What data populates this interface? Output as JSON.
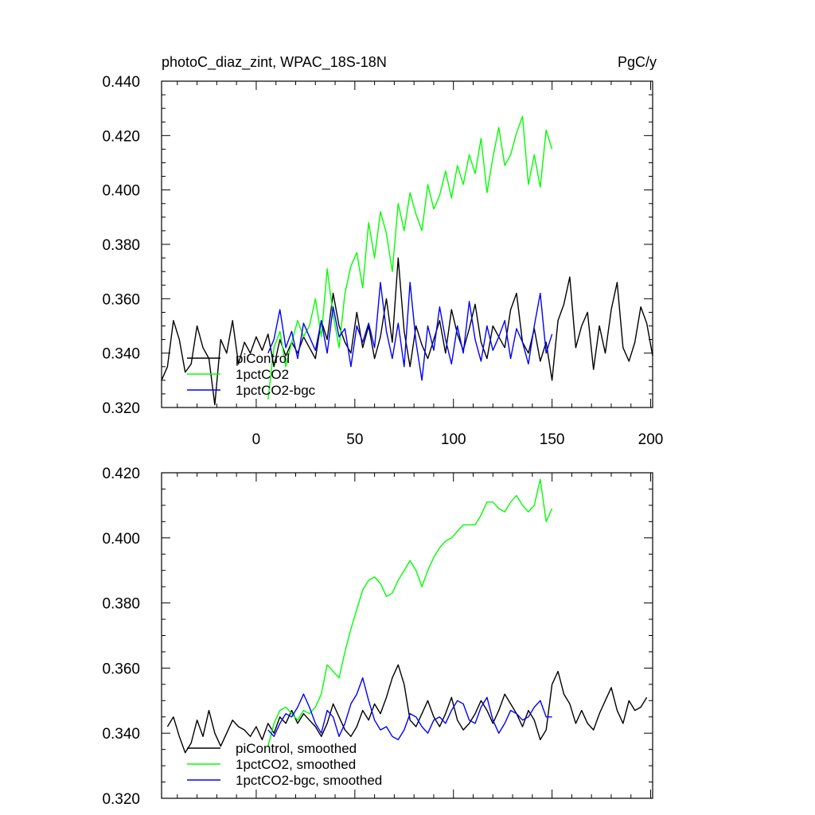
{
  "header": {
    "left": "photoC_diaz_zint, WPAC_18S-18N",
    "right": "PgC/y"
  },
  "chart_data": [
    {
      "type": "line",
      "title": "photoC_diaz_zint, WPAC_18S-18N",
      "units": "PgC/y",
      "xlim": [
        -48,
        201
      ],
      "ylim": [
        0.32,
        0.44
      ],
      "xticks": [
        0,
        50,
        100,
        150,
        200
      ],
      "xtick_labels": [
        "0",
        "50",
        "100",
        "150",
        "200"
      ],
      "yticks": [
        0.32,
        0.34,
        0.36,
        0.38,
        0.4,
        0.42,
        0.44
      ],
      "ytick_labels": [
        "0.320",
        "0.340",
        "0.360",
        "0.380",
        "0.400",
        "0.420",
        "0.440"
      ],
      "legend_position": "bottom-left",
      "series": [
        {
          "name": "piControl",
          "color": "#000000",
          "x": [
            -48,
            -45,
            -42,
            -39,
            -36,
            -33,
            -30,
            -27,
            -24,
            -21,
            -18,
            -15,
            -12,
            -9,
            -6,
            -3,
            0,
            3,
            6,
            9,
            12,
            15,
            18,
            21,
            24,
            27,
            30,
            33,
            36,
            39,
            42,
            45,
            48,
            51,
            54,
            57,
            60,
            63,
            66,
            69,
            72,
            75,
            78,
            81,
            84,
            87,
            90,
            93,
            96,
            99,
            102,
            105,
            108,
            111,
            114,
            117,
            120,
            123,
            126,
            129,
            132,
            135,
            138,
            141,
            144,
            147,
            150,
            153,
            156,
            159,
            162,
            165,
            168,
            171,
            174,
            177,
            180,
            183,
            186,
            189,
            192,
            195,
            198,
            201
          ],
          "y": [
            0.33,
            0.335,
            0.352,
            0.345,
            0.333,
            0.336,
            0.35,
            0.342,
            0.338,
            0.321,
            0.345,
            0.34,
            0.352,
            0.336,
            0.344,
            0.34,
            0.346,
            0.341,
            0.347,
            0.335,
            0.345,
            0.339,
            0.344,
            0.34,
            0.346,
            0.342,
            0.338,
            0.352,
            0.345,
            0.362,
            0.35,
            0.344,
            0.34,
            0.355,
            0.342,
            0.35,
            0.338,
            0.346,
            0.36,
            0.344,
            0.375,
            0.348,
            0.335,
            0.35,
            0.343,
            0.338,
            0.345,
            0.352,
            0.34,
            0.356,
            0.347,
            0.341,
            0.349,
            0.358,
            0.344,
            0.338,
            0.35,
            0.346,
            0.342,
            0.356,
            0.362,
            0.344,
            0.34,
            0.349,
            0.337,
            0.344,
            0.33,
            0.352,
            0.358,
            0.368,
            0.342,
            0.35,
            0.355,
            0.334,
            0.35,
            0.34,
            0.356,
            0.366,
            0.342,
            0.337,
            0.344,
            0.357,
            0.351,
            0.339
          ]
        },
        {
          "name": "1pctCO2",
          "color": "#00ff00",
          "x": [
            6,
            9,
            12,
            15,
            18,
            21,
            24,
            27,
            30,
            33,
            36,
            39,
            42,
            45,
            48,
            51,
            54,
            57,
            60,
            63,
            66,
            69,
            72,
            75,
            78,
            81,
            84,
            87,
            90,
            93,
            96,
            99,
            102,
            105,
            108,
            111,
            114,
            117,
            120,
            123,
            126,
            129,
            132,
            135,
            138,
            141,
            144,
            147,
            150
          ],
          "y": [
            0.323,
            0.342,
            0.348,
            0.335,
            0.344,
            0.352,
            0.346,
            0.35,
            0.36,
            0.346,
            0.371,
            0.354,
            0.342,
            0.362,
            0.372,
            0.377,
            0.364,
            0.388,
            0.375,
            0.392,
            0.384,
            0.37,
            0.395,
            0.385,
            0.399,
            0.391,
            0.385,
            0.402,
            0.393,
            0.398,
            0.407,
            0.397,
            0.409,
            0.402,
            0.413,
            0.406,
            0.419,
            0.399,
            0.412,
            0.423,
            0.409,
            0.413,
            0.421,
            0.427,
            0.402,
            0.413,
            0.401,
            0.422,
            0.415
          ]
        },
        {
          "name": "1pctCO2-bgc",
          "color": "#0000ff",
          "x": [
            6,
            9,
            12,
            15,
            18,
            21,
            24,
            27,
            30,
            33,
            36,
            39,
            42,
            45,
            48,
            51,
            54,
            57,
            60,
            63,
            66,
            69,
            72,
            75,
            78,
            81,
            84,
            87,
            90,
            93,
            96,
            99,
            102,
            105,
            108,
            111,
            114,
            117,
            120,
            123,
            126,
            129,
            132,
            135,
            138,
            141,
            144,
            147,
            150
          ],
          "y": [
            0.34,
            0.345,
            0.356,
            0.342,
            0.348,
            0.338,
            0.351,
            0.346,
            0.341,
            0.352,
            0.34,
            0.357,
            0.346,
            0.349,
            0.335,
            0.35,
            0.344,
            0.351,
            0.342,
            0.366,
            0.348,
            0.338,
            0.351,
            0.335,
            0.366,
            0.344,
            0.33,
            0.35,
            0.341,
            0.357,
            0.345,
            0.336,
            0.35,
            0.34,
            0.359,
            0.345,
            0.337,
            0.35,
            0.341,
            0.346,
            0.352,
            0.338,
            0.349,
            0.344,
            0.336,
            0.35,
            0.362,
            0.34,
            0.347
          ]
        }
      ]
    },
    {
      "type": "line",
      "xlim": [
        -48,
        201
      ],
      "ylim": [
        0.32,
        0.42
      ],
      "xticks": [
        0,
        50,
        100,
        150,
        200
      ],
      "yticks": [
        0.32,
        0.34,
        0.36,
        0.38,
        0.4,
        0.42
      ],
      "ytick_labels": [
        "0.320",
        "0.340",
        "0.360",
        "0.380",
        "0.400",
        "0.420"
      ],
      "legend_position": "bottom-left",
      "series": [
        {
          "name": "piControl, smoothed",
          "color": "#000000",
          "x": [
            -45,
            -42,
            -39,
            -36,
            -33,
            -30,
            -27,
            -24,
            -21,
            -18,
            -15,
            -12,
            -9,
            -6,
            -3,
            0,
            3,
            6,
            9,
            12,
            15,
            18,
            21,
            24,
            27,
            30,
            33,
            36,
            39,
            42,
            45,
            48,
            51,
            54,
            57,
            60,
            63,
            66,
            69,
            72,
            75,
            78,
            81,
            84,
            87,
            90,
            93,
            96,
            99,
            102,
            105,
            108,
            111,
            114,
            117,
            120,
            123,
            126,
            129,
            132,
            135,
            138,
            141,
            144,
            147,
            150,
            153,
            156,
            159,
            162,
            165,
            168,
            171,
            174,
            177,
            180,
            183,
            186,
            189,
            192,
            195,
            198
          ],
          "y": [
            0.342,
            0.345,
            0.339,
            0.334,
            0.337,
            0.344,
            0.339,
            0.347,
            0.34,
            0.336,
            0.34,
            0.344,
            0.342,
            0.341,
            0.339,
            0.342,
            0.338,
            0.343,
            0.34,
            0.345,
            0.343,
            0.347,
            0.343,
            0.346,
            0.344,
            0.342,
            0.339,
            0.343,
            0.349,
            0.345,
            0.341,
            0.339,
            0.342,
            0.347,
            0.344,
            0.349,
            0.346,
            0.351,
            0.357,
            0.361,
            0.355,
            0.344,
            0.342,
            0.346,
            0.35,
            0.345,
            0.342,
            0.346,
            0.351,
            0.344,
            0.341,
            0.343,
            0.346,
            0.35,
            0.347,
            0.343,
            0.347,
            0.352,
            0.349,
            0.346,
            0.342,
            0.347,
            0.344,
            0.338,
            0.341,
            0.355,
            0.359,
            0.352,
            0.349,
            0.343,
            0.347,
            0.343,
            0.341,
            0.346,
            0.35,
            0.354,
            0.347,
            0.343,
            0.35,
            0.347,
            0.348,
            0.351
          ]
        },
        {
          "name": "1pctCO2, smoothed",
          "color": "#00ff00",
          "x": [
            6,
            9,
            12,
            15,
            18,
            21,
            24,
            27,
            30,
            33,
            36,
            39,
            42,
            45,
            48,
            51,
            54,
            57,
            60,
            63,
            66,
            69,
            72,
            75,
            78,
            81,
            84,
            87,
            90,
            93,
            96,
            99,
            102,
            105,
            108,
            111,
            114,
            117,
            120,
            123,
            126,
            129,
            132,
            135,
            138,
            141,
            144,
            147,
            150
          ],
          "y": [
            0.336,
            0.343,
            0.347,
            0.348,
            0.346,
            0.344,
            0.347,
            0.346,
            0.348,
            0.352,
            0.361,
            0.359,
            0.357,
            0.365,
            0.372,
            0.378,
            0.384,
            0.387,
            0.388,
            0.386,
            0.382,
            0.383,
            0.387,
            0.39,
            0.393,
            0.39,
            0.385,
            0.39,
            0.394,
            0.397,
            0.399,
            0.4,
            0.402,
            0.404,
            0.404,
            0.404,
            0.407,
            0.411,
            0.411,
            0.409,
            0.408,
            0.411,
            0.413,
            0.41,
            0.408,
            0.41,
            0.418,
            0.405,
            0.409
          ]
        },
        {
          "name": "1pctCO2-bgc, smoothed",
          "color": "#0000ff",
          "x": [
            6,
            9,
            12,
            15,
            18,
            21,
            24,
            27,
            30,
            33,
            36,
            39,
            42,
            45,
            48,
            51,
            54,
            57,
            60,
            63,
            66,
            69,
            72,
            75,
            78,
            81,
            84,
            87,
            90,
            93,
            96,
            99,
            102,
            105,
            108,
            111,
            114,
            117,
            120,
            123,
            126,
            129,
            132,
            135,
            138,
            141,
            144,
            147,
            150
          ],
          "y": [
            0.341,
            0.339,
            0.343,
            0.346,
            0.345,
            0.348,
            0.352,
            0.348,
            0.343,
            0.34,
            0.347,
            0.345,
            0.339,
            0.343,
            0.349,
            0.352,
            0.357,
            0.35,
            0.344,
            0.341,
            0.342,
            0.339,
            0.338,
            0.341,
            0.346,
            0.345,
            0.342,
            0.34,
            0.344,
            0.345,
            0.343,
            0.347,
            0.35,
            0.349,
            0.344,
            0.343,
            0.348,
            0.351,
            0.344,
            0.34,
            0.343,
            0.347,
            0.346,
            0.344,
            0.345,
            0.348,
            0.35,
            0.345,
            0.345
          ]
        }
      ]
    }
  ]
}
